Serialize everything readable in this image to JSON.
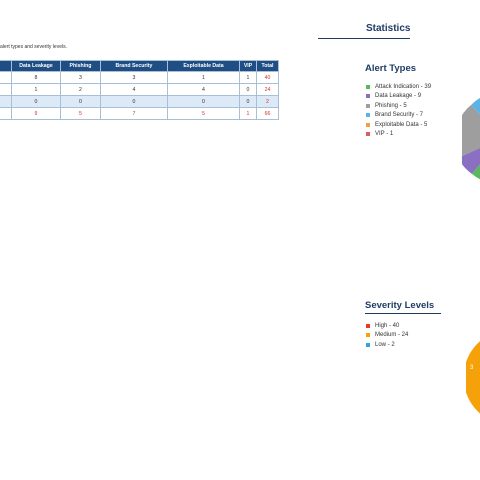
{
  "intro_text": "alert types and severity levels.",
  "table": {
    "headers": [
      "",
      "Data Leakage",
      "Phishing",
      "Brand Security",
      "Exploitable Data",
      "VIP",
      "Total"
    ],
    "rows": [
      [
        "",
        "8",
        "3",
        "3",
        "1",
        "1",
        "40"
      ],
      [
        "",
        "1",
        "2",
        "4",
        "4",
        "0",
        "24"
      ],
      [
        "",
        "0",
        "0",
        "0",
        "0",
        "0",
        "2"
      ],
      [
        "",
        "9",
        "5",
        "7",
        "5",
        "1",
        "66"
      ]
    ]
  },
  "statistics_title": "Statistics",
  "alert_types": {
    "title": "Alert Types",
    "items": [
      {
        "label": "Attack Indication - 39",
        "color": "#5cb85c"
      },
      {
        "label": "Data Leakage - 9",
        "color": "#8a6fc2"
      },
      {
        "label": "Phishing - 5",
        "color": "#9e9e9e"
      },
      {
        "label": "Brand Security - 7",
        "color": "#5bb4e5"
      },
      {
        "label": "Exploitable Data - 5",
        "color": "#f5a13a"
      },
      {
        "label": "VIP - 1",
        "color": "#e25a5a"
      }
    ]
  },
  "severity_levels": {
    "title": "Severity Levels",
    "items": [
      {
        "label": "High - 40",
        "color": "#e53935"
      },
      {
        "label": "Medium - 24",
        "color": "#f5a10a"
      },
      {
        "label": "Low - 2",
        "color": "#29a8e0"
      }
    ]
  },
  "pie_fragment_label": "3"
}
